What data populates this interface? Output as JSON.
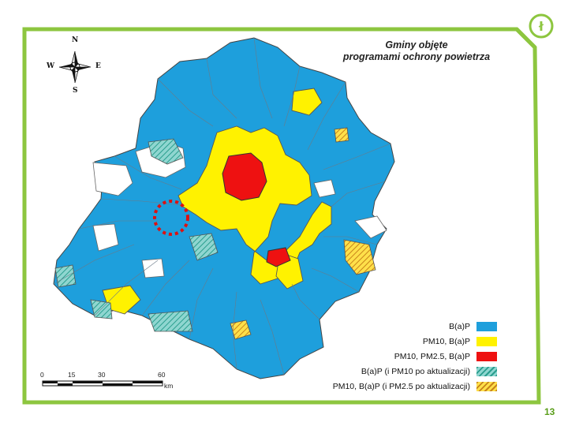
{
  "map": {
    "title_line1": "Gminy objęte",
    "title_line2": "programami ochrony powietrza",
    "compass": {
      "n": "N",
      "s": "S",
      "e": "E",
      "w": "W"
    },
    "legend": [
      {
        "label": "B(a)P",
        "color": "#1e9fdc",
        "pattern": "solid"
      },
      {
        "label": "PM10, B(a)P",
        "color": "#fff200",
        "pattern": "solid"
      },
      {
        "label": "PM10, PM2.5, B(a)P",
        "color": "#ee1111",
        "pattern": "solid"
      },
      {
        "label": "B(a)P (i PM10 po aktualizacji)",
        "color": "#1e9fdc",
        "pattern": "hatched"
      },
      {
        "label": "PM10, B(a)P (i PM2.5 po aktualizacji)",
        "color": "#fff200",
        "pattern": "hatched"
      }
    ],
    "scale": {
      "ticks": [
        "0",
        "15",
        "30",
        "60"
      ],
      "unit": "km"
    },
    "colors": {
      "frame": "#8dc63f",
      "blue": "#1e9fdc",
      "yellow": "#fff200",
      "red": "#ee1111",
      "hatch_blue": "#3aa89a",
      "hatch_yellow": "#e8b020",
      "highlight": "#dd1111"
    }
  },
  "logo_icon": "lodzkie-logo-icon",
  "page_number": "13"
}
